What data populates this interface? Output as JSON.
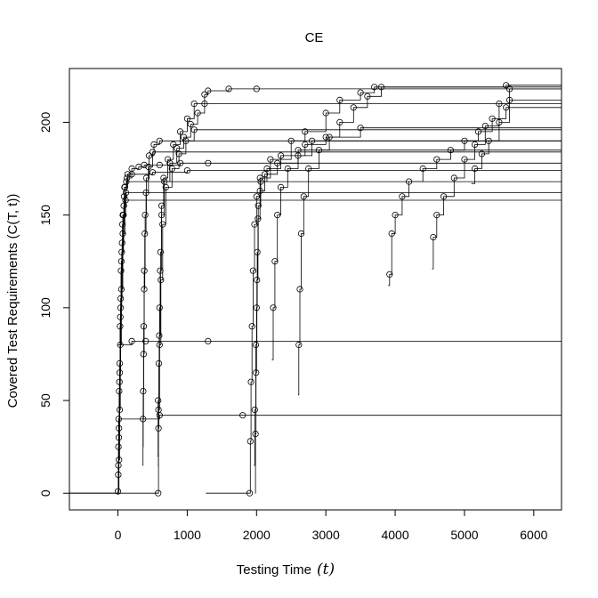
{
  "chart_data": {
    "type": "line",
    "title": "CE",
    "xlabel": "Testing Time",
    "xlabel_symbol": "(t)",
    "ylabel": "Covered Test Requirements (C(T, t))",
    "xlim": [
      -700,
      6400
    ],
    "ylim": [
      -9,
      229
    ],
    "x_ticks": [
      0,
      1000,
      2000,
      3000,
      4000,
      5000,
      6000
    ],
    "x_tick_labels": [
      "0",
      "1000",
      "2000",
      "3000",
      "4000",
      "5000",
      "6000"
    ],
    "y_ticks": [
      0,
      50,
      100,
      150,
      200
    ],
    "y_tick_labels": [
      "0",
      "50",
      "100",
      "150",
      "200"
    ],
    "grid": false,
    "legend": "none",
    "series_style": {
      "color": "#000000",
      "marker": "open-circle",
      "line": "step"
    },
    "series": [
      {
        "values": [
          [
            -700,
            0
          ],
          [
            0,
            1
          ],
          [
            15,
            18
          ],
          [
            25,
            45
          ],
          [
            35,
            80
          ],
          [
            50,
            110
          ],
          [
            70,
            140
          ],
          [
            100,
            165
          ],
          [
            140,
            172
          ],
          [
            200,
            175
          ],
          [
            300,
            176
          ],
          [
            380,
            177
          ],
          [
            600,
            177
          ],
          [
            900,
            178
          ],
          [
            1300,
            178
          ],
          [
            6400,
            178
          ]
        ]
      },
      {
        "values": [
          [
            0,
            0
          ],
          [
            5,
            10
          ],
          [
            12,
            30
          ],
          [
            22,
            60
          ],
          [
            35,
            95
          ],
          [
            50,
            125
          ],
          [
            70,
            150
          ],
          [
            95,
            165
          ],
          [
            130,
            170
          ],
          [
            200,
            172
          ],
          [
            500,
            173
          ],
          [
            1000,
            174
          ],
          [
            6400,
            174
          ]
        ]
      },
      {
        "values": [
          [
            0,
            0
          ],
          [
            8,
            25
          ],
          [
            18,
            55
          ],
          [
            30,
            90
          ],
          [
            45,
            120
          ],
          [
            65,
            145
          ],
          [
            90,
            160
          ],
          [
            120,
            168
          ],
          [
            6400,
            168
          ]
        ]
      },
      {
        "values": [
          [
            0,
            0
          ],
          [
            10,
            40
          ],
          [
            25,
            70
          ],
          [
            40,
            105
          ],
          [
            60,
            135
          ],
          [
            85,
            155
          ],
          [
            115,
            162
          ],
          [
            6400,
            162
          ]
        ]
      },
      {
        "values": [
          [
            0,
            0
          ],
          [
            6,
            15
          ],
          [
            14,
            35
          ],
          [
            26,
            65
          ],
          [
            38,
            100
          ],
          [
            55,
            130
          ],
          [
            80,
            150
          ],
          [
            110,
            158
          ],
          [
            6400,
            158
          ]
        ]
      },
      {
        "values": [
          [
            -700,
            0
          ],
          [
            580,
            0
          ],
          [
            585,
            35
          ],
          [
            590,
            70
          ],
          [
            600,
            100
          ],
          [
            615,
            130
          ],
          [
            630,
            155
          ],
          [
            660,
            170
          ],
          [
            720,
            180
          ],
          [
            800,
            188
          ],
          [
            900,
            195
          ],
          [
            1000,
            202
          ],
          [
            1100,
            210
          ],
          [
            1250,
            215
          ],
          [
            1300,
            217
          ],
          [
            1600,
            218
          ],
          [
            2000,
            218
          ],
          [
            6400,
            218
          ]
        ]
      },
      {
        "values": [
          [
            570,
            20
          ],
          [
            580,
            50
          ],
          [
            595,
            85
          ],
          [
            610,
            120
          ],
          [
            630,
            150
          ],
          [
            670,
            168
          ],
          [
            750,
            178
          ],
          [
            850,
            186
          ],
          [
            950,
            192
          ],
          [
            1050,
            199
          ],
          [
            1150,
            205
          ],
          [
            1250,
            210
          ],
          [
            6400,
            210
          ]
        ]
      },
      {
        "values": [
          [
            575,
            15
          ],
          [
            585,
            45
          ],
          [
            600,
            80
          ],
          [
            620,
            115
          ],
          [
            645,
            145
          ],
          [
            690,
            165
          ],
          [
            780,
            175
          ],
          [
            880,
            183
          ],
          [
            980,
            190
          ],
          [
            1100,
            196
          ],
          [
            6400,
            196
          ]
        ]
      },
      {
        "values": [
          [
            360,
            25
          ],
          [
            365,
            55
          ],
          [
            372,
            90
          ],
          [
            380,
            120
          ],
          [
            392,
            150
          ],
          [
            410,
            170
          ],
          [
            450,
            182
          ],
          [
            520,
            188
          ],
          [
            600,
            190
          ],
          [
            6400,
            190
          ]
        ]
      },
      {
        "values": [
          [
            355,
            15
          ],
          [
            362,
            40
          ],
          [
            370,
            75
          ],
          [
            378,
            110
          ],
          [
            388,
            140
          ],
          [
            405,
            162
          ],
          [
            440,
            176
          ],
          [
            500,
            184
          ],
          [
            6400,
            184
          ]
        ]
      },
      {
        "values": [
          [
            1270,
            0
          ],
          [
            1900,
            0
          ],
          [
            1910,
            28
          ],
          [
            1920,
            60
          ],
          [
            1935,
            90
          ],
          [
            1950,
            120
          ],
          [
            1970,
            145
          ],
          [
            2000,
            160
          ],
          [
            2050,
            170
          ],
          [
            2200,
            180
          ],
          [
            2500,
            190
          ],
          [
            2700,
            195
          ],
          [
            3000,
            205
          ],
          [
            3200,
            212
          ],
          [
            3500,
            216
          ],
          [
            3700,
            219
          ],
          [
            6400,
            219
          ]
        ]
      },
      {
        "values": [
          [
            1980,
            0
          ],
          [
            1985,
            32
          ],
          [
            1992,
            65
          ],
          [
            2000,
            100
          ],
          [
            2010,
            130
          ],
          [
            2025,
            155
          ],
          [
            2060,
            168
          ],
          [
            2150,
            175
          ],
          [
            2350,
            182
          ],
          [
            2700,
            188
          ],
          [
            3000,
            192
          ],
          [
            3500,
            197
          ],
          [
            6400,
            197
          ]
        ]
      },
      {
        "values": [
          [
            1960,
            15
          ],
          [
            1975,
            45
          ],
          [
            1990,
            80
          ],
          [
            2005,
            115
          ],
          [
            2020,
            148
          ],
          [
            2050,
            163
          ],
          [
            2120,
            172
          ],
          [
            2300,
            178
          ],
          [
            2600,
            185
          ],
          [
            6400,
            185
          ]
        ]
      },
      {
        "values": [
          [
            2600,
            53
          ],
          [
            2610,
            80
          ],
          [
            2625,
            110
          ],
          [
            2645,
            140
          ],
          [
            2680,
            160
          ],
          [
            2750,
            175
          ],
          [
            2900,
            185
          ],
          [
            3050,
            192
          ],
          [
            3200,
            200
          ],
          [
            3400,
            208
          ],
          [
            3600,
            214
          ],
          [
            3800,
            219
          ],
          [
            5600,
            220
          ],
          [
            6400,
            220
          ]
        ]
      },
      {
        "values": [
          [
            2220,
            72
          ],
          [
            2240,
            100
          ],
          [
            2265,
            125
          ],
          [
            2300,
            150
          ],
          [
            2350,
            165
          ],
          [
            2450,
            175
          ],
          [
            2600,
            182
          ],
          [
            2800,
            190
          ],
          [
            6400,
            190
          ]
        ]
      },
      {
        "values": [
          [
            3900,
            112
          ],
          [
            3920,
            118
          ],
          [
            3950,
            140
          ],
          [
            4000,
            150
          ],
          [
            4100,
            160
          ],
          [
            4200,
            168
          ],
          [
            4400,
            175
          ],
          [
            4600,
            180
          ],
          [
            4800,
            185
          ],
          [
            5000,
            190
          ],
          [
            5200,
            195
          ],
          [
            5400,
            202
          ],
          [
            5600,
            208
          ],
          [
            6400,
            208
          ]
        ]
      },
      {
        "values": [
          [
            4530,
            121
          ],
          [
            4550,
            138
          ],
          [
            4600,
            150
          ],
          [
            4700,
            160
          ],
          [
            4850,
            170
          ],
          [
            5000,
            180
          ],
          [
            5150,
            188
          ],
          [
            5300,
            198
          ],
          [
            5500,
            210
          ],
          [
            5650,
            218
          ],
          [
            6400,
            218
          ]
        ]
      },
      {
        "values": [
          [
            5100,
            167
          ],
          [
            5150,
            175
          ],
          [
            5250,
            183
          ],
          [
            5350,
            190
          ],
          [
            5500,
            200
          ],
          [
            5650,
            212
          ],
          [
            6400,
            212
          ]
        ]
      },
      {
        "values": [
          [
            0,
            80
          ],
          [
            200,
            82
          ],
          [
            400,
            82
          ],
          [
            1300,
            82
          ],
          [
            6400,
            82
          ]
        ]
      },
      {
        "values": [
          [
            0,
            40
          ],
          [
            600,
            42
          ],
          [
            1800,
            42
          ],
          [
            6400,
            42
          ]
        ]
      }
    ]
  }
}
